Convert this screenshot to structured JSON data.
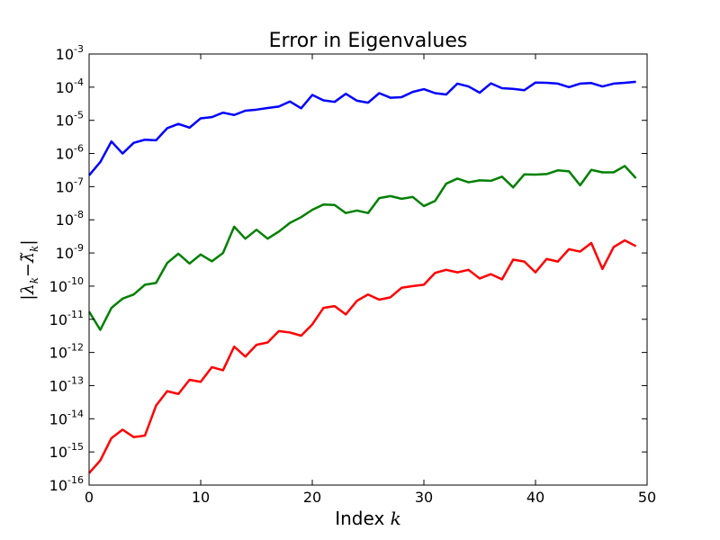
{
  "chart_data": {
    "type": "line",
    "title": "Error in Eigenvalues",
    "xlabel": "Index k",
    "ylabel": "|λ_k − λ̃_k|",
    "xlim": [
      0,
      50
    ],
    "ylim": [
      1e-16,
      0.001
    ],
    "yscale": "log",
    "grid": false,
    "legend": "none",
    "x_ticks": [
      0,
      10,
      20,
      30,
      40,
      50
    ],
    "y_tick_exponents": [
      -16,
      -15,
      -14,
      -13,
      -12,
      -11,
      -10,
      -9,
      -8,
      -7,
      -6,
      -5,
      -4,
      -3
    ],
    "x": [
      0,
      1,
      2,
      3,
      4,
      5,
      6,
      7,
      8,
      9,
      10,
      11,
      12,
      13,
      14,
      15,
      16,
      17,
      18,
      19,
      20,
      21,
      22,
      23,
      24,
      25,
      26,
      27,
      28,
      29,
      30,
      31,
      32,
      33,
      34,
      35,
      36,
      37,
      38,
      39,
      40,
      41,
      42,
      43,
      44,
      45,
      46,
      47,
      48,
      49
    ],
    "series": [
      {
        "color": "#0000ff",
        "values": [
          2.2e-07,
          5.5e-07,
          2.3e-06,
          1e-06,
          2.1e-06,
          2.6e-06,
          2.5e-06,
          5.8e-06,
          7.8e-06,
          6e-06,
          1.15e-05,
          1.25e-05,
          1.7e-05,
          1.45e-05,
          1.95e-05,
          2.1e-05,
          2.35e-05,
          2.6e-05,
          3.7e-05,
          2.3e-05,
          5.8e-05,
          4e-05,
          3.6e-05,
          6.3e-05,
          3.9e-05,
          3.4e-05,
          6.6e-05,
          4.8e-05,
          5e-05,
          7.2e-05,
          8.7e-05,
          6.6e-05,
          6e-05,
          0.000128,
          0.000105,
          6.8e-05,
          0.00013,
          9.3e-05,
          8.9e-05,
          8.1e-05,
          0.000138,
          0.000135,
          0.000128,
          0.0001,
          0.000128,
          0.000133,
          0.000105,
          0.000128,
          0.000135,
          0.000145
        ]
      },
      {
        "color": "#008000",
        "values": [
          1.7e-11,
          4.8e-12,
          2.2e-11,
          4.2e-11,
          5.6e-11,
          1.1e-10,
          1.25e-10,
          5e-10,
          9.5e-10,
          4.8e-10,
          9e-10,
          5.6e-10,
          1e-09,
          6.2e-09,
          2.7e-09,
          5e-09,
          2.7e-09,
          4.4e-09,
          8.1e-09,
          1.2e-08,
          2e-08,
          2.9e-08,
          2.8e-08,
          1.6e-08,
          1.9e-08,
          1.6e-08,
          4.5e-08,
          5.2e-08,
          4.3e-08,
          4.9e-08,
          2.6e-08,
          3.7e-08,
          1.23e-07,
          1.75e-07,
          1.35e-07,
          1.55e-07,
          1.5e-07,
          2e-07,
          9.5e-08,
          2.35e-07,
          2.3e-07,
          2.4e-07,
          3.1e-07,
          2.9e-07,
          1.1e-07,
          3.2e-07,
          2.7e-07,
          2.7e-07,
          4.2e-07,
          1.8e-07
        ]
      },
      {
        "color": "#ff0000",
        "values": [
          2.3e-16,
          5.5e-16,
          2.6e-15,
          4.7e-15,
          2.8e-15,
          3.1e-15,
          2.5e-14,
          6.8e-14,
          5.6e-14,
          1.5e-13,
          1.3e-13,
          3.6e-13,
          2.9e-13,
          1.5e-12,
          7.5e-13,
          1.7e-12,
          2e-12,
          4.4e-12,
          4e-12,
          3.2e-12,
          7e-12,
          2.2e-11,
          2.5e-11,
          1.4e-11,
          3.6e-11,
          5.6e-11,
          3.9e-11,
          4.6e-11,
          8.9e-11,
          1e-10,
          1.1e-10,
          2.5e-10,
          3.1e-10,
          2.6e-10,
          3.1e-10,
          1.7e-10,
          2.3e-10,
          1.6e-10,
          6.3e-10,
          5.5e-10,
          2.6e-10,
          6.6e-10,
          5.5e-10,
          1.3e-09,
          1.1e-09,
          2e-09,
          3.3e-10,
          1.5e-09,
          2.4e-09,
          1.6e-09
        ]
      }
    ]
  }
}
